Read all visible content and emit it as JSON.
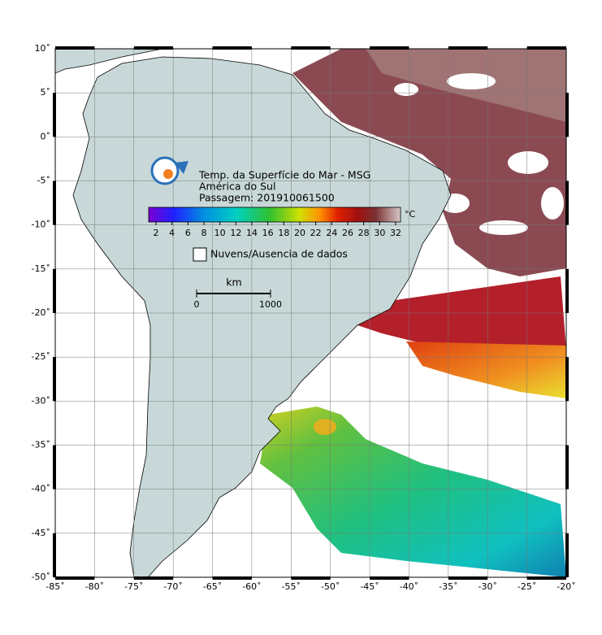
{
  "map": {
    "title": "Temp. da Superfície do Mar - MSG",
    "region": "América do Sul",
    "pass": "Passagem: 201910061500",
    "colorbar": {
      "unit": "°C",
      "ticks": [
        2,
        4,
        6,
        8,
        10,
        12,
        14,
        16,
        18,
        20,
        22,
        24,
        26,
        28,
        30,
        32
      ]
    },
    "legend": "Nuvens/Ausencia de dados",
    "scale": {
      "unit": "km",
      "ticks": [
        0,
        1000
      ]
    },
    "lon": {
      "range": [
        -85,
        -20
      ],
      "ticks": [
        {
          "value": -85,
          "label": "-85˚"
        },
        {
          "value": -80,
          "label": "-80˚"
        },
        {
          "value": -75,
          "label": "-75˚"
        },
        {
          "value": -70,
          "label": "-70˚"
        },
        {
          "value": -65,
          "label": "-65˚"
        },
        {
          "value": -60,
          "label": "-60˚"
        },
        {
          "value": -55,
          "label": "-55˚"
        },
        {
          "value": -50,
          "label": "-50˚"
        },
        {
          "value": -45,
          "label": "-45˚"
        },
        {
          "value": -40,
          "label": "-40˚"
        },
        {
          "value": -35,
          "label": "-35˚"
        },
        {
          "value": -30,
          "label": "-30˚"
        },
        {
          "value": -25,
          "label": "-25˚"
        },
        {
          "value": -20,
          "label": "-20˚"
        }
      ]
    },
    "lat": {
      "range": [
        10,
        -50
      ],
      "ticks": [
        {
          "value": 10,
          "label": "10˚"
        },
        {
          "value": 5,
          "label": "5˚"
        },
        {
          "value": 0,
          "label": "0˚"
        },
        {
          "value": -5,
          "label": "-5˚"
        },
        {
          "value": -10,
          "label": "-10˚"
        },
        {
          "value": -15,
          "label": "-15˚"
        },
        {
          "value": -20,
          "label": "-20˚"
        },
        {
          "value": -25,
          "label": "-25˚"
        },
        {
          "value": -30,
          "label": "-30˚"
        },
        {
          "value": -35,
          "label": "-35˚"
        },
        {
          "value": -40,
          "label": "-40˚"
        },
        {
          "value": -45,
          "label": "-45˚"
        },
        {
          "value": -50,
          "label": "-50˚"
        }
      ]
    }
  }
}
